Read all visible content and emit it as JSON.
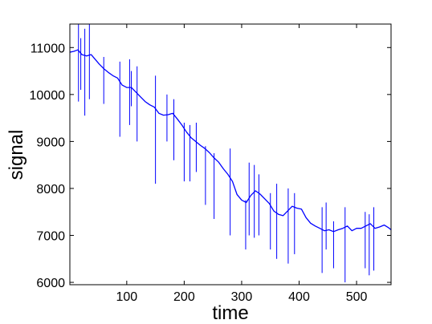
{
  "chart_data": {
    "type": "line",
    "title": "",
    "xlabel": "time",
    "ylabel": "signal",
    "xlim": [
      1,
      560
    ],
    "ylim": [
      5950,
      11500
    ],
    "xticks": [
      100,
      200,
      300,
      400,
      500
    ],
    "yticks": [
      6000,
      7000,
      8000,
      9000,
      10000,
      11000
    ],
    "xtick_labels": [
      "100",
      "200",
      "300",
      "400",
      "500"
    ],
    "ytick_labels": [
      "6000",
      "7000",
      "8000",
      "9000",
      "10000",
      "11000"
    ],
    "grid": false,
    "legend": "none",
    "line_color": "#0000ff",
    "series": [
      {
        "x": [
          1,
          8,
          15,
          22,
          30,
          38,
          45,
          52,
          60,
          68,
          76,
          84,
          92,
          100,
          108,
          116,
          124,
          132,
          140,
          148,
          156,
          164,
          172,
          180,
          188,
          196,
          204,
          212,
          220,
          228,
          236,
          244,
          252,
          260,
          268,
          276,
          284,
          292,
          300,
          308,
          316,
          324,
          332,
          340,
          348,
          356,
          364,
          372,
          380,
          388,
          396,
          404,
          412,
          420,
          428,
          436,
          444,
          452,
          460,
          468,
          476,
          484,
          492,
          500,
          508,
          516,
          524,
          532,
          540,
          548,
          556,
          560
        ],
        "values": [
          10900,
          10920,
          10950,
          10850,
          10820,
          10850,
          10750,
          10650,
          10550,
          10470,
          10400,
          10350,
          10200,
          10150,
          10150,
          10050,
          9950,
          9850,
          9780,
          9730,
          9600,
          9560,
          9570,
          9600,
          9480,
          9350,
          9200,
          9080,
          9000,
          8920,
          8850,
          8760,
          8650,
          8560,
          8420,
          8300,
          8150,
          7870,
          7750,
          7700,
          7850,
          7950,
          7880,
          7780,
          7680,
          7520,
          7450,
          7420,
          7520,
          7620,
          7580,
          7560,
          7380,
          7260,
          7200,
          7150,
          7100,
          7120,
          7080,
          7120,
          7150,
          7200,
          7100,
          7150,
          7150,
          7200,
          7250,
          7150,
          7180,
          7220,
          7160,
          7120
        ]
      }
    ],
    "spikes": [
      {
        "x": 16,
        "low": 9850,
        "high": 11500
      },
      {
        "x": 20,
        "low": 10100,
        "high": 11200
      },
      {
        "x": 27,
        "low": 9550,
        "high": 11400
      },
      {
        "x": 35,
        "low": 9900,
        "high": 11500
      },
      {
        "x": 60,
        "low": 9800,
        "high": 10800
      },
      {
        "x": 88,
        "low": 9100,
        "high": 10700
      },
      {
        "x": 105,
        "low": 9350,
        "high": 10750
      },
      {
        "x": 108,
        "low": 9750,
        "high": 10500
      },
      {
        "x": 118,
        "low": 9000,
        "high": 10600
      },
      {
        "x": 150,
        "low": 8100,
        "high": 10400
      },
      {
        "x": 170,
        "low": 9000,
        "high": 10000
      },
      {
        "x": 182,
        "low": 8600,
        "high": 9900
      },
      {
        "x": 200,
        "low": 8150,
        "high": 9400
      },
      {
        "x": 210,
        "low": 8150,
        "high": 9350
      },
      {
        "x": 221,
        "low": 8350,
        "high": 9400
      },
      {
        "x": 237,
        "low": 7650,
        "high": 8900
      },
      {
        "x": 252,
        "low": 7350,
        "high": 8750
      },
      {
        "x": 280,
        "low": 7000,
        "high": 8850
      },
      {
        "x": 307,
        "low": 6700,
        "high": 7750
      },
      {
        "x": 313,
        "low": 7000,
        "high": 8550
      },
      {
        "x": 322,
        "low": 6950,
        "high": 8500
      },
      {
        "x": 330,
        "low": 7000,
        "high": 8300
      },
      {
        "x": 350,
        "low": 6700,
        "high": 7900
      },
      {
        "x": 361,
        "low": 6500,
        "high": 8100
      },
      {
        "x": 381,
        "low": 6400,
        "high": 8000
      },
      {
        "x": 392,
        "low": 6600,
        "high": 7900
      },
      {
        "x": 440,
        "low": 6200,
        "high": 7600
      },
      {
        "x": 447,
        "low": 6700,
        "high": 7700
      },
      {
        "x": 460,
        "low": 6300,
        "high": 7300
      },
      {
        "x": 480,
        "low": 6000,
        "high": 7600
      },
      {
        "x": 515,
        "low": 6300,
        "high": 7500
      },
      {
        "x": 522,
        "low": 6150,
        "high": 7450
      },
      {
        "x": 530,
        "low": 6250,
        "high": 7600
      }
    ]
  }
}
